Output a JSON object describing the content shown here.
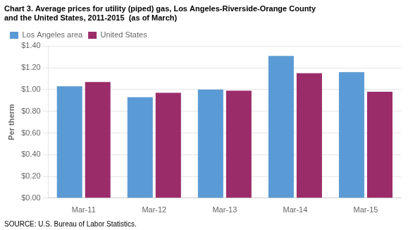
{
  "chart_data": {
    "type": "bar",
    "title": "Chart 3. Average prices for utility (piped) gas, Los Angeles-Riverside-Orange County",
    "subtitle": "and the United States, 2011-2015  (as of March)",
    "y_label": "Per therm",
    "annotations": [
      "SOURCE: U.S. Bureau of Labor Statistics."
    ],
    "categories": [
      "Mar-11",
      "Mar-12",
      "Mar-13",
      "Mar-14",
      "Mar-15"
    ],
    "series": [
      {
        "name": "Los Angeles area",
        "color": "#5B9BD5",
        "values": [
          1.03,
          0.93,
          1.0,
          1.31,
          1.16
        ]
      },
      {
        "name": "United States",
        "color": "#9B2C6A",
        "values": [
          1.07,
          0.97,
          0.99,
          1.15,
          0.98
        ]
      }
    ],
    "ylim": [
      0,
      1.4
    ],
    "yticks": [
      {
        "value": 0.0,
        "label": "$0.00"
      },
      {
        "value": 0.2,
        "label": "$0.20"
      },
      {
        "value": 0.4,
        "label": "$0.40"
      },
      {
        "value": 0.6,
        "label": "$0.60"
      },
      {
        "value": 0.8,
        "label": "$0.80"
      },
      {
        "value": 1.0,
        "label": "$1.00"
      },
      {
        "value": 1.2,
        "label": "$1.20"
      },
      {
        "value": 1.4,
        "label": "$1.40"
      }
    ],
    "grid": true,
    "legend": "upper left"
  }
}
